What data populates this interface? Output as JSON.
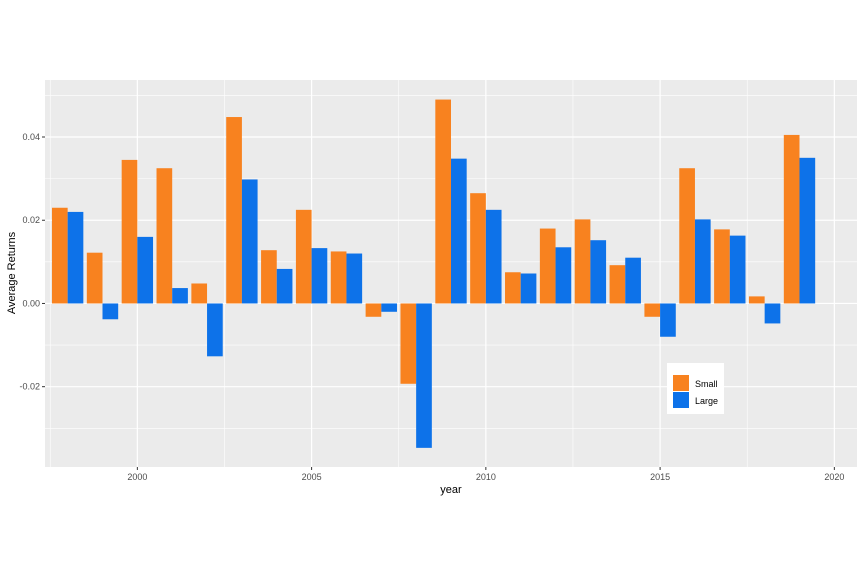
{
  "chart_data": {
    "type": "bar",
    "title": "",
    "xlabel": "year",
    "ylabel": "Average Returns",
    "x": [
      1998,
      1999,
      2000,
      2001,
      2002,
      2003,
      2004,
      2005,
      2006,
      2007,
      2008,
      2009,
      2010,
      2011,
      2012,
      2013,
      2014,
      2015,
      2016,
      2017,
      2018,
      2019
    ],
    "series": [
      {
        "name": "Small",
        "color": "#F8821F",
        "values": [
          0.023,
          0.0122,
          0.0345,
          0.0325,
          0.0048,
          0.0448,
          0.0128,
          0.0225,
          0.0125,
          -0.0032,
          -0.0193,
          0.049,
          0.0265,
          0.0075,
          0.018,
          0.0202,
          0.0092,
          -0.0032,
          0.0325,
          0.0178,
          0.0017,
          0.0405
        ]
      },
      {
        "name": "Large",
        "color": "#0D72E9",
        "values": [
          0.022,
          -0.0038,
          0.016,
          0.0037,
          -0.0127,
          0.0298,
          0.0083,
          0.0133,
          0.012,
          -0.002,
          -0.0347,
          0.0348,
          0.0225,
          0.0072,
          0.0135,
          0.0152,
          0.011,
          -0.008,
          0.0202,
          0.0163,
          -0.0048,
          0.035
        ]
      }
    ],
    "xlim": [
      1997.35,
      2020.65
    ],
    "ylim": [
      -0.0393,
      0.0537
    ],
    "x_ticks": [
      2000,
      2005,
      2010,
      2015,
      2020
    ],
    "x_tick_labels": [
      "2000",
      "2005",
      "2010",
      "2015",
      "2020"
    ],
    "y_ticks": [
      -0.02,
      0.0,
      0.02,
      0.04
    ],
    "y_tick_labels": [
      "-0.02",
      "0.00",
      "0.02",
      "0.04"
    ],
    "grid": true,
    "legend_position": "inside-bottom-right",
    "panel_background": "#EBEBEB",
    "grid_color": "#FFFFFF"
  }
}
